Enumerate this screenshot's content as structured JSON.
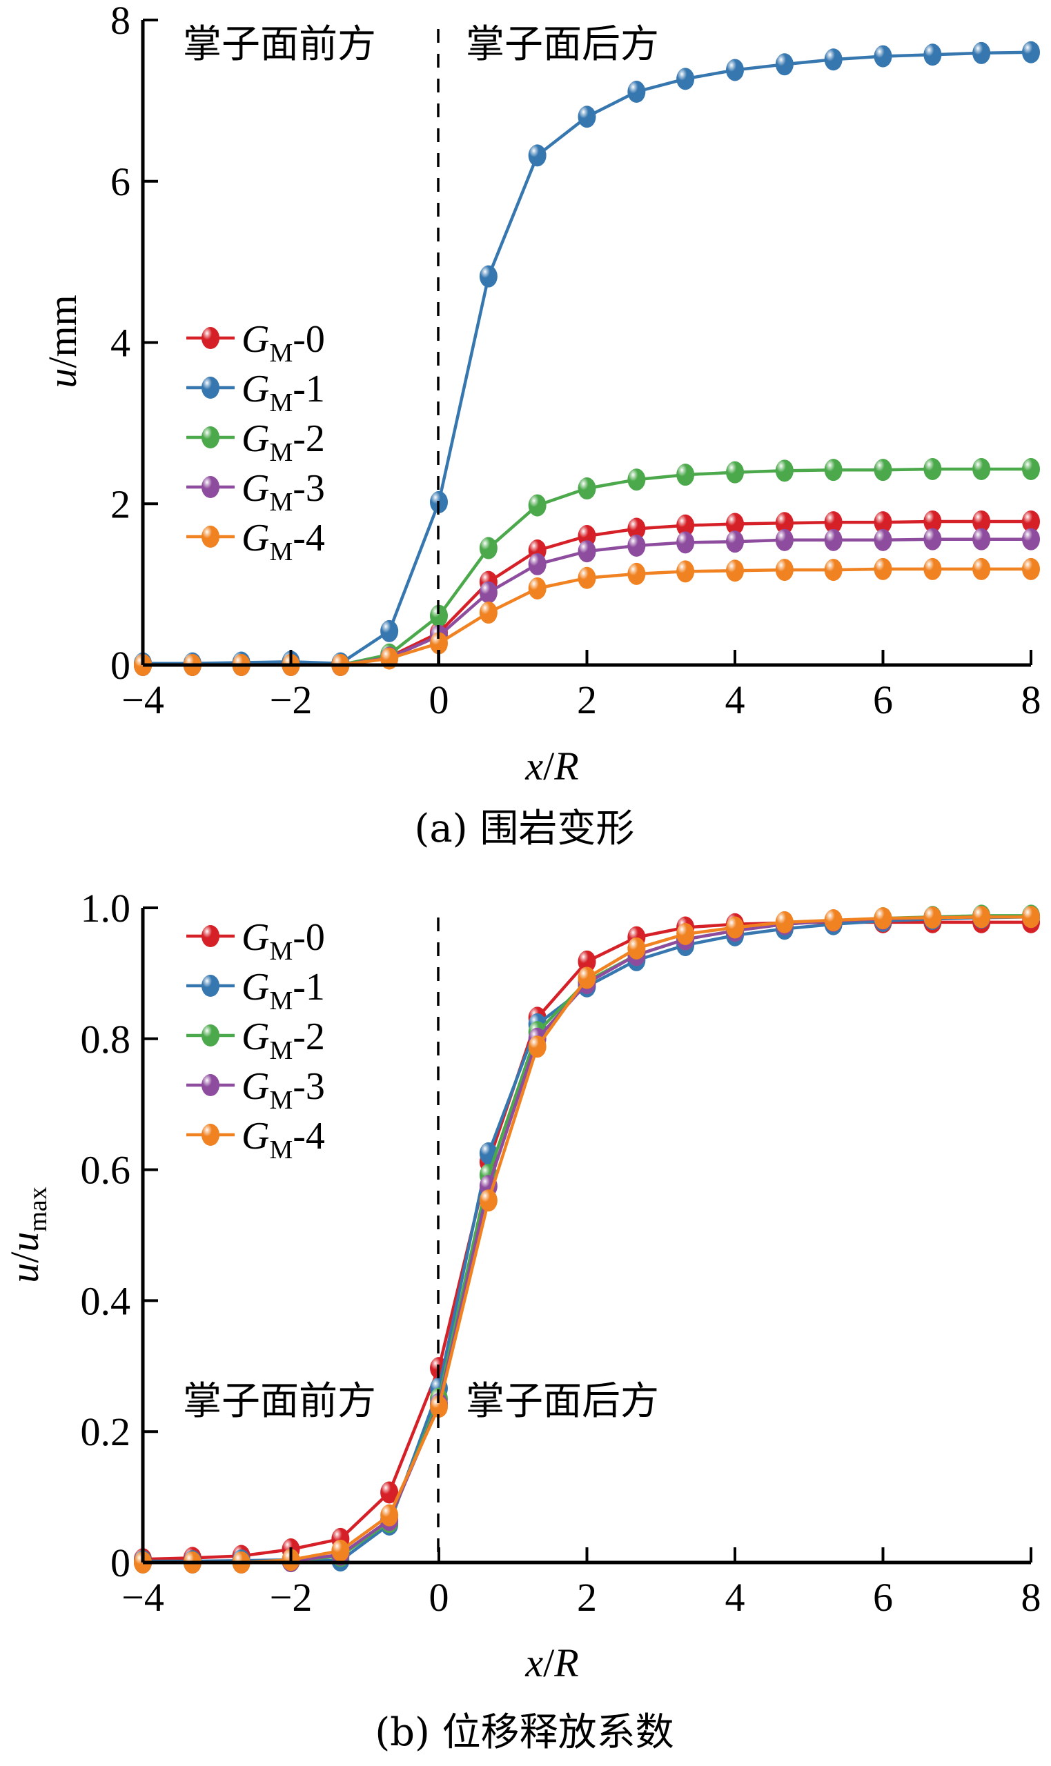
{
  "chart_data": [
    {
      "type": "line",
      "caption": "(a) 围岩变形",
      "xlabel": "x/R",
      "xlabel_parts": {
        "x": "x",
        "slash": "/",
        "R": "R"
      },
      "ylabel": "u/mm",
      "ylabel_parts": {
        "u": "u",
        "unit": "/mm"
      },
      "xlim": [
        -4,
        8
      ],
      "ylim": [
        0,
        8
      ],
      "xticks": [
        -4,
        -2,
        0,
        2,
        4,
        6,
        8
      ],
      "xtick_labels": [
        "−4",
        "−2",
        "0",
        "2",
        "4",
        "6",
        "8"
      ],
      "yticks": [
        0,
        2,
        4,
        6,
        8
      ],
      "ytick_labels": [
        "0",
        "2",
        "4",
        "6",
        "8"
      ],
      "grid": false,
      "legend_position": "left-center",
      "annotations": {
        "front": "掌子面前方",
        "behind": "掌子面后方"
      },
      "x": [
        -4,
        -3.33,
        -2.67,
        -2,
        -1.33,
        -0.67,
        0,
        0.67,
        1.33,
        2,
        2.67,
        3.33,
        4,
        4.67,
        5.33,
        6,
        6.67,
        7.33,
        8
      ],
      "series": [
        {
          "name": "G_M-0",
          "label_main": "G",
          "label_sub": "M",
          "label_suffix": "-0",
          "color": "#d62027",
          "values": [
            0.0,
            0.0,
            0.0,
            0.0,
            0.0,
            0.1,
            0.4,
            1.03,
            1.42,
            1.6,
            1.69,
            1.73,
            1.75,
            1.76,
            1.77,
            1.77,
            1.78,
            1.78,
            1.78
          ]
        },
        {
          "name": "G_M-1",
          "label_main": "G",
          "label_sub": "M",
          "label_suffix": "-1",
          "color": "#3677b0",
          "values": [
            0.02,
            0.02,
            0.03,
            0.04,
            0.02,
            0.42,
            2.02,
            4.82,
            6.32,
            6.8,
            7.11,
            7.27,
            7.38,
            7.45,
            7.51,
            7.55,
            7.57,
            7.59,
            7.6
          ]
        },
        {
          "name": "G_M-2",
          "label_main": "G",
          "label_sub": "M",
          "label_suffix": "-2",
          "color": "#4ba94b",
          "values": [
            0.0,
            0.0,
            0.0,
            0.0,
            0.0,
            0.13,
            0.61,
            1.45,
            1.98,
            2.19,
            2.3,
            2.36,
            2.39,
            2.41,
            2.42,
            2.42,
            2.43,
            2.43,
            2.43
          ]
        },
        {
          "name": "G_M-3",
          "label_main": "G",
          "label_sub": "M",
          "label_suffix": "-3",
          "color": "#8e4c9e",
          "values": [
            0.0,
            0.0,
            0.0,
            0.0,
            0.0,
            0.09,
            0.36,
            0.9,
            1.25,
            1.41,
            1.48,
            1.52,
            1.53,
            1.55,
            1.55,
            1.55,
            1.56,
            1.56,
            1.56
          ]
        },
        {
          "name": "G_M-4",
          "label_main": "G",
          "label_sub": "M",
          "label_suffix": "-4",
          "color": "#f08221",
          "values": [
            0.0,
            0.0,
            0.0,
            0.0,
            0.0,
            0.08,
            0.27,
            0.65,
            0.95,
            1.08,
            1.13,
            1.16,
            1.17,
            1.18,
            1.18,
            1.19,
            1.19,
            1.19,
            1.19
          ]
        }
      ]
    },
    {
      "type": "line",
      "caption": "(b) 位移释放系数",
      "xlabel": "x/R",
      "xlabel_parts": {
        "x": "x",
        "slash": "/",
        "R": "R"
      },
      "ylabel": "u/u_max",
      "ylabel_parts": {
        "u": "u",
        "slash": "/",
        "u2": "u",
        "sub": "max"
      },
      "xlim": [
        -4,
        8
      ],
      "ylim": [
        0,
        1.0
      ],
      "xticks": [
        -4,
        -2,
        0,
        2,
        4,
        6,
        8
      ],
      "xtick_labels": [
        "−4",
        "−2",
        "0",
        "2",
        "4",
        "6",
        "8"
      ],
      "yticks": [
        0,
        0.2,
        0.4,
        0.6,
        0.8,
        1.0
      ],
      "ytick_labels": [
        "0",
        "0.2",
        "0.4",
        "0.6",
        "0.8",
        "1.0"
      ],
      "grid": false,
      "legend_position": "top-left",
      "annotations": {
        "front": "掌子面前方",
        "behind": "掌子面后方"
      },
      "x": [
        -4,
        -3.33,
        -2.67,
        -2,
        -1.33,
        -0.67,
        0,
        0.67,
        1.33,
        2,
        2.67,
        3.33,
        4,
        4.67,
        5.33,
        6,
        6.67,
        7.33,
        8
      ],
      "series": [
        {
          "name": "G_M-0",
          "label_main": "G",
          "label_sub": "M",
          "label_suffix": "-0",
          "color": "#d62027",
          "values": [
            0.005,
            0.007,
            0.01,
            0.02,
            0.036,
            0.107,
            0.297,
            0.612,
            0.832,
            0.918,
            0.955,
            0.97,
            0.975,
            0.977,
            0.978,
            0.978,
            0.978,
            0.978,
            0.978
          ]
        },
        {
          "name": "G_M-1",
          "label_main": "G",
          "label_sub": "M",
          "label_suffix": "-1",
          "color": "#3677b0",
          "values": [
            0.002,
            0.002,
            0.003,
            0.004,
            0.003,
            0.058,
            0.266,
            0.625,
            0.822,
            0.88,
            0.92,
            0.943,
            0.958,
            0.968,
            0.975,
            0.98,
            0.983,
            0.985,
            0.986
          ]
        },
        {
          "name": "G_M-2",
          "label_main": "G",
          "label_sub": "M",
          "label_suffix": "-2",
          "color": "#4ba94b",
          "values": [
            0.0,
            0.0,
            0.0,
            0.002,
            0.01,
            0.062,
            0.25,
            0.592,
            0.81,
            0.888,
            0.928,
            0.952,
            0.965,
            0.975,
            0.98,
            0.984,
            0.986,
            0.988,
            0.988
          ]
        },
        {
          "name": "G_M-3",
          "label_main": "G",
          "label_sub": "M",
          "label_suffix": "-3",
          "color": "#8e4c9e",
          "values": [
            0.0,
            0.0,
            0.0,
            0.002,
            0.012,
            0.065,
            0.242,
            0.575,
            0.8,
            0.885,
            0.928,
            0.952,
            0.965,
            0.975,
            0.98,
            0.983,
            0.985,
            0.986,
            0.986
          ]
        },
        {
          "name": "G_M-4",
          "label_main": "G",
          "label_sub": "M",
          "label_suffix": "-4",
          "color": "#f08221",
          "values": [
            0.0,
            0.0,
            0.0,
            0.004,
            0.018,
            0.072,
            0.238,
            0.553,
            0.788,
            0.893,
            0.938,
            0.96,
            0.97,
            0.978,
            0.981,
            0.984,
            0.985,
            0.986,
            0.986
          ]
        }
      ]
    }
  ]
}
